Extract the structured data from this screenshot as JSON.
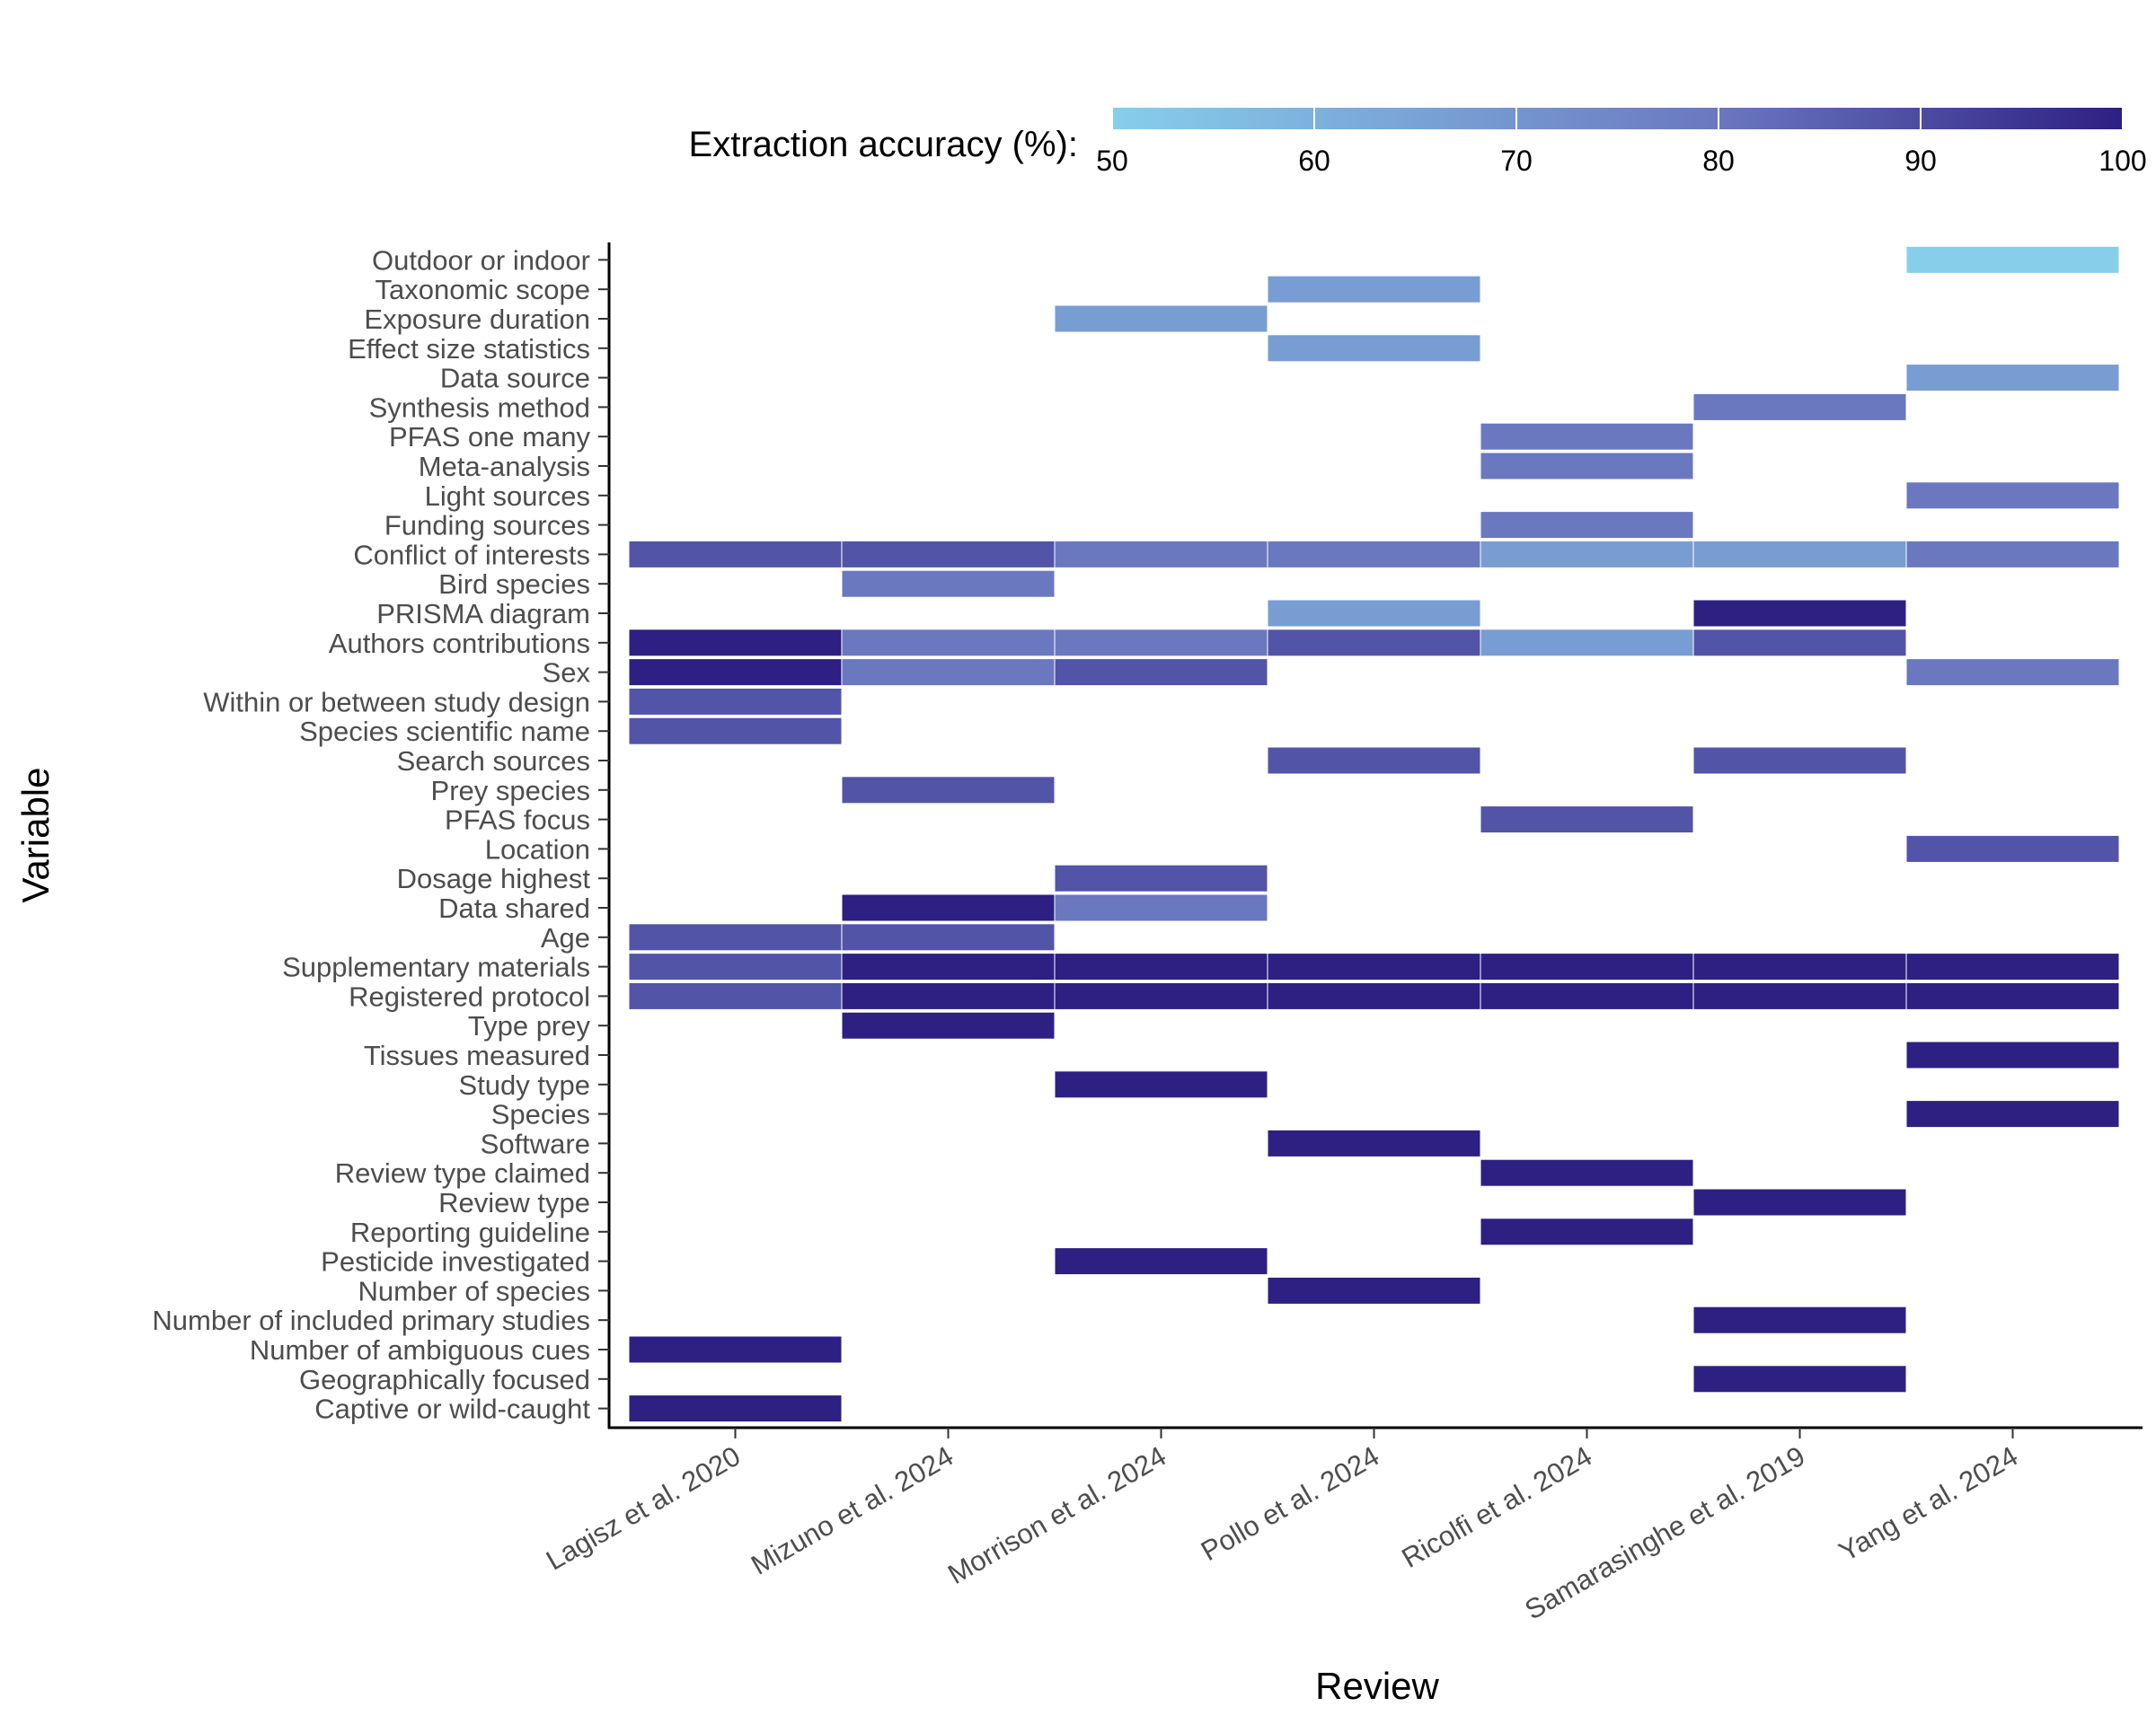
{
  "chart_data": {
    "type": "heatmap",
    "xlabel": "Review",
    "ylabel": "Variable",
    "legend": {
      "title": "Extraction accuracy (%):",
      "position": "top",
      "range": [
        50,
        100
      ],
      "ticks": [
        "50",
        "60",
        "70",
        "80",
        "90",
        "100"
      ]
    },
    "colors": {
      "low": "#87ceeb",
      "mid": "#6a78c0",
      "high": "#2e1f82"
    },
    "x": [
      "Lagisz et al. 2020",
      "Mizuno et al. 2024",
      "Morrison et al. 2024",
      "Pollo et al. 2024",
      "Ricolfi et al. 2024",
      "Samarasinghe et al. 2019",
      "Yang et al. 2024"
    ],
    "y": [
      "Outdoor or indoor",
      "Taxonomic scope",
      "Exposure duration",
      "Effect size statistics",
      "Data source",
      "Synthesis method",
      "PFAS one many",
      "Meta-analysis",
      "Light sources",
      "Funding sources",
      "Conflict of interests",
      "Bird species",
      "PRISMA diagram",
      "Authors contributions",
      "Sex",
      "Within or between study design",
      "Species scientific name",
      "Search sources",
      "Prey species",
      "PFAS focus",
      "Location",
      "Dosage highest",
      "Data shared",
      "Age",
      "Supplementary materials",
      "Registered protocol",
      "Type prey",
      "Tissues measured",
      "Study type",
      "Species",
      "Software",
      "Review type claimed",
      "Review type",
      "Reporting guideline",
      "Pesticide investigated",
      "Number of species",
      "Number of included primary studies",
      "Number of ambiguous cues",
      "Geographically focused",
      "Captive or wild-caught"
    ],
    "cells": [
      {
        "x": "Yang et al. 2024",
        "y": "Outdoor or indoor",
        "value": 50
      },
      {
        "x": "Pollo et al. 2024",
        "y": "Taxonomic scope",
        "value": 67
      },
      {
        "x": "Morrison et al. 2024",
        "y": "Exposure duration",
        "value": 67
      },
      {
        "x": "Pollo et al. 2024",
        "y": "Effect size statistics",
        "value": 67
      },
      {
        "x": "Yang et al. 2024",
        "y": "Data source",
        "value": 67
      },
      {
        "x": "Samarasinghe et al. 2019",
        "y": "Synthesis method",
        "value": 80
      },
      {
        "x": "Ricolfi et al. 2024",
        "y": "PFAS one many",
        "value": 80
      },
      {
        "x": "Ricolfi et al. 2024",
        "y": "Meta-analysis",
        "value": 80
      },
      {
        "x": "Yang et al. 2024",
        "y": "Light sources",
        "value": 80
      },
      {
        "x": "Ricolfi et al. 2024",
        "y": "Funding sources",
        "value": 80
      },
      {
        "x": "Lagisz et al. 2020",
        "y": "Conflict of interests",
        "value": 88
      },
      {
        "x": "Mizuno et al. 2024",
        "y": "Conflict of interests",
        "value": 88
      },
      {
        "x": "Morrison et al. 2024",
        "y": "Conflict of interests",
        "value": 80
      },
      {
        "x": "Pollo et al. 2024",
        "y": "Conflict of interests",
        "value": 80
      },
      {
        "x": "Ricolfi et al. 2024",
        "y": "Conflict of interests",
        "value": 67
      },
      {
        "x": "Samarasinghe et al. 2019",
        "y": "Conflict of interests",
        "value": 67
      },
      {
        "x": "Yang et al. 2024",
        "y": "Conflict of interests",
        "value": 80
      },
      {
        "x": "Mizuno et al. 2024",
        "y": "Bird species",
        "value": 80
      },
      {
        "x": "Pollo et al. 2024",
        "y": "PRISMA diagram",
        "value": 67
      },
      {
        "x": "Samarasinghe et al. 2019",
        "y": "PRISMA diagram",
        "value": 100
      },
      {
        "x": "Lagisz et al. 2020",
        "y": "Authors contributions",
        "value": 100
      },
      {
        "x": "Mizuno et al. 2024",
        "y": "Authors contributions",
        "value": 80
      },
      {
        "x": "Morrison et al. 2024",
        "y": "Authors contributions",
        "value": 80
      },
      {
        "x": "Pollo et al. 2024",
        "y": "Authors contributions",
        "value": 88
      },
      {
        "x": "Ricolfi et al. 2024",
        "y": "Authors contributions",
        "value": 67
      },
      {
        "x": "Samarasinghe et al. 2019",
        "y": "Authors contributions",
        "value": 88
      },
      {
        "x": "Lagisz et al. 2020",
        "y": "Sex",
        "value": 100
      },
      {
        "x": "Mizuno et al. 2024",
        "y": "Sex",
        "value": 80
      },
      {
        "x": "Morrison et al. 2024",
        "y": "Sex",
        "value": 88
      },
      {
        "x": "Yang et al. 2024",
        "y": "Sex",
        "value": 80
      },
      {
        "x": "Lagisz et al. 2020",
        "y": "Within or between study design",
        "value": 88
      },
      {
        "x": "Lagisz et al. 2020",
        "y": "Species scientific name",
        "value": 88
      },
      {
        "x": "Pollo et al. 2024",
        "y": "Search sources",
        "value": 88
      },
      {
        "x": "Samarasinghe et al. 2019",
        "y": "Search sources",
        "value": 88
      },
      {
        "x": "Mizuno et al. 2024",
        "y": "Prey species",
        "value": 88
      },
      {
        "x": "Ricolfi et al. 2024",
        "y": "PFAS focus",
        "value": 88
      },
      {
        "x": "Yang et al. 2024",
        "y": "Location",
        "value": 88
      },
      {
        "x": "Morrison et al. 2024",
        "y": "Dosage highest",
        "value": 88
      },
      {
        "x": "Mizuno et al. 2024",
        "y": "Data shared",
        "value": 100
      },
      {
        "x": "Morrison et al. 2024",
        "y": "Data shared",
        "value": 80
      },
      {
        "x": "Lagisz et al. 2020",
        "y": "Age",
        "value": 88
      },
      {
        "x": "Mizuno et al. 2024",
        "y": "Age",
        "value": 88
      },
      {
        "x": "Lagisz et al. 2020",
        "y": "Supplementary materials",
        "value": 88
      },
      {
        "x": "Mizuno et al. 2024",
        "y": "Supplementary materials",
        "value": 100
      },
      {
        "x": "Morrison et al. 2024",
        "y": "Supplementary materials",
        "value": 100
      },
      {
        "x": "Pollo et al. 2024",
        "y": "Supplementary materials",
        "value": 100
      },
      {
        "x": "Ricolfi et al. 2024",
        "y": "Supplementary materials",
        "value": 100
      },
      {
        "x": "Samarasinghe et al. 2019",
        "y": "Supplementary materials",
        "value": 100
      },
      {
        "x": "Yang et al. 2024",
        "y": "Supplementary materials",
        "value": 100
      },
      {
        "x": "Lagisz et al. 2020",
        "y": "Registered protocol",
        "value": 88
      },
      {
        "x": "Mizuno et al. 2024",
        "y": "Registered protocol",
        "value": 100
      },
      {
        "x": "Morrison et al. 2024",
        "y": "Registered protocol",
        "value": 100
      },
      {
        "x": "Pollo et al. 2024",
        "y": "Registered protocol",
        "value": 100
      },
      {
        "x": "Ricolfi et al. 2024",
        "y": "Registered protocol",
        "value": 100
      },
      {
        "x": "Samarasinghe et al. 2019",
        "y": "Registered protocol",
        "value": 100
      },
      {
        "x": "Yang et al. 2024",
        "y": "Registered protocol",
        "value": 100
      },
      {
        "x": "Mizuno et al. 2024",
        "y": "Type prey",
        "value": 100
      },
      {
        "x": "Yang et al. 2024",
        "y": "Tissues measured",
        "value": 100
      },
      {
        "x": "Morrison et al. 2024",
        "y": "Study type",
        "value": 100
      },
      {
        "x": "Yang et al. 2024",
        "y": "Species",
        "value": 100
      },
      {
        "x": "Pollo et al. 2024",
        "y": "Software",
        "value": 100
      },
      {
        "x": "Ricolfi et al. 2024",
        "y": "Review type claimed",
        "value": 100
      },
      {
        "x": "Samarasinghe et al. 2019",
        "y": "Review type",
        "value": 100
      },
      {
        "x": "Ricolfi et al. 2024",
        "y": "Reporting guideline",
        "value": 100
      },
      {
        "x": "Morrison et al. 2024",
        "y": "Pesticide investigated",
        "value": 100
      },
      {
        "x": "Pollo et al. 2024",
        "y": "Number of species",
        "value": 100
      },
      {
        "x": "Samarasinghe et al. 2019",
        "y": "Number of included primary studies",
        "value": 100
      },
      {
        "x": "Lagisz et al. 2020",
        "y": "Number of ambiguous cues",
        "value": 100
      },
      {
        "x": "Samarasinghe et al. 2019",
        "y": "Geographically focused",
        "value": 100
      },
      {
        "x": "Lagisz et al. 2020",
        "y": "Captive or wild-caught",
        "value": 100
      }
    ]
  }
}
